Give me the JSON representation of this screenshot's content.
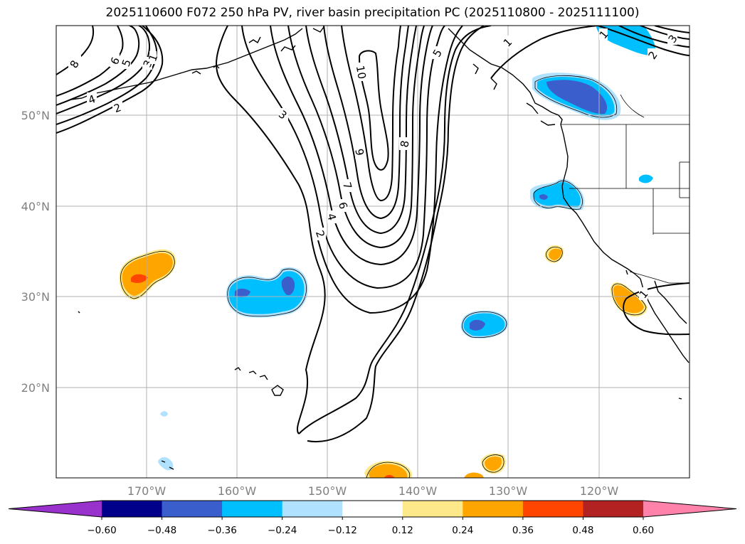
{
  "title": "2025110600 F072 250 hPa PV, river basin precipitation PC (2025110800 - 2025111100)",
  "lat_labels": [
    "50°N",
    "40°N",
    "30°N",
    "20°N"
  ],
  "lon_labels": [
    "170°W",
    "160°W",
    "150°W",
    "140°W",
    "130°W",
    "120°W"
  ],
  "colorbar": {
    "tick_labels": [
      "−0.60",
      "−0.48",
      "−0.36",
      "−0.24",
      "−0.12",
      "0.12",
      "0.24",
      "0.36",
      "0.48",
      "0.60"
    ],
    "colors": [
      "#9932cc",
      "#00008b",
      "#3a5fcd",
      "#00bfff",
      "#b0e2ff",
      "#ffffff",
      "#fde98a",
      "#ffa500",
      "#ff4500",
      "#b22222",
      "#ff82ab"
    ]
  },
  "contour_labels": [
    "8",
    "6",
    "5",
    "3",
    "1",
    "4",
    "2",
    "3",
    "10",
    "9",
    "8",
    "7",
    "6",
    "4",
    "2",
    "5",
    "1",
    "1",
    "3",
    "2",
    "1"
  ],
  "colors": {
    "grid": "#b0b0b0",
    "contour": "#000000",
    "tick_text": "#808080"
  }
}
